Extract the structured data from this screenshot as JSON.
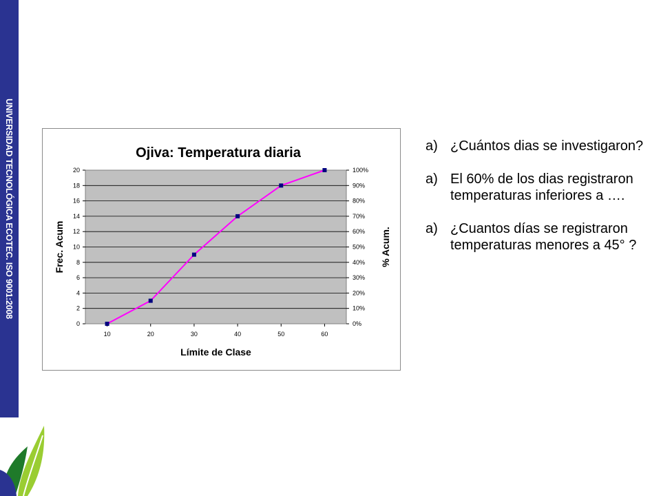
{
  "sidebar": {
    "text": "UNIVERSIDAD TECNOLÓGICA ECOTEC. ISO 9001:2008"
  },
  "chart_data": {
    "type": "line",
    "title": "Ojiva: Temperatura diaria",
    "xlabel": "Límite de Clase",
    "ylabel": "Frec. Acum",
    "y2label": "% Acum.",
    "x": [
      10,
      20,
      30,
      40,
      50,
      60
    ],
    "series": [
      {
        "values": [
          0,
          3,
          9,
          14,
          18,
          20
        ]
      }
    ],
    "ylim": [
      0,
      20
    ],
    "yticks": [
      "0",
      "2",
      "4",
      "6",
      "8",
      "10",
      "12",
      "14",
      "16",
      "18",
      "20"
    ],
    "y2ticks": [
      "0%",
      "10%",
      "20%",
      "30%",
      "40%",
      "50%",
      "60%",
      "70%",
      "80%",
      "90%",
      "100%"
    ],
    "xticks": [
      "10",
      "20",
      "30",
      "40",
      "50",
      "60"
    ],
    "line_color": "#ff00ff",
    "marker_color": "#000080",
    "plot_bg": "#c0c0c0",
    "grid": true
  },
  "questions": [
    {
      "marker": "a)",
      "text": "¿Cuántos dias se investigaron?"
    },
    {
      "marker": "a)",
      "text": "El 60% de los dias registraron temperaturas inferiores a …."
    },
    {
      "marker": "a)",
      "text": "¿Cuantos días se registraron temperaturas menores a 45° ?"
    }
  ]
}
